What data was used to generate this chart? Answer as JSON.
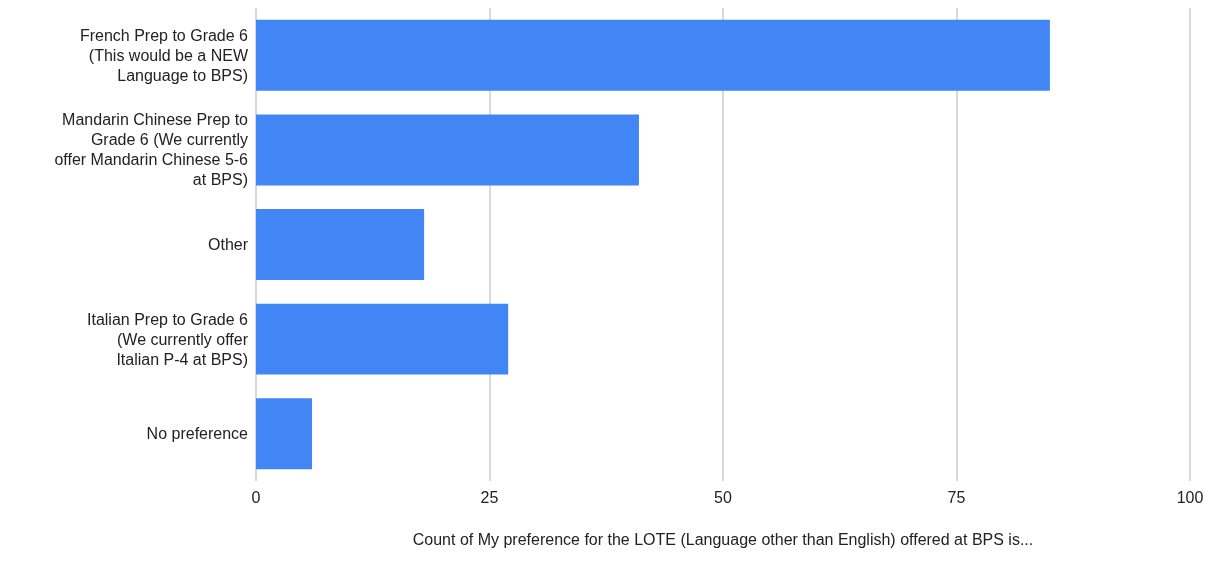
{
  "chart_data": {
    "type": "bar",
    "orientation": "horizontal",
    "categories": [
      "French Prep to Grade 6 (This would be a NEW Language to BPS)",
      "Mandarin Chinese Prep to Grade 6 (We currently offer Mandarin Chinese 5-6 at BPS)",
      "Other",
      "Italian Prep to Grade 6 (We currently offer Italian P-4 at BPS)",
      "No preference"
    ],
    "values": [
      85,
      41,
      18,
      27,
      6
    ],
    "color": "#4285f4",
    "xlabel": "Count of My preference for the LOTE (Language other than English) offered at BPS is...",
    "xlim": [
      0,
      100
    ],
    "xticks": [
      0,
      25,
      50,
      75,
      100
    ],
    "grid": "x"
  }
}
